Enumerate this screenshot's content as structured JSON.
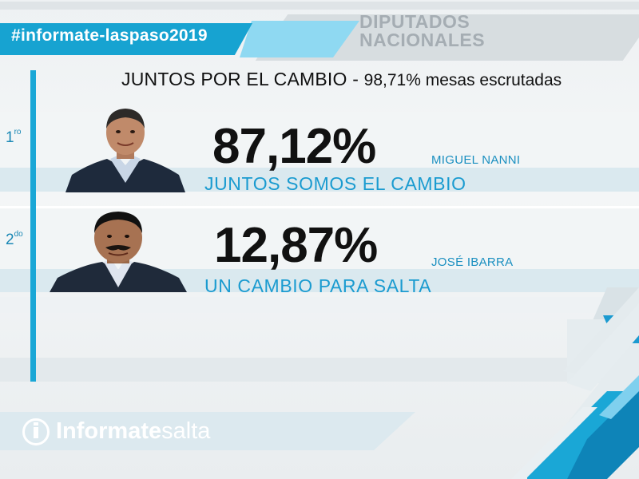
{
  "header": {
    "hashtag": "#informate-laspaso2019",
    "section_title_line1": "DIPUTADOS",
    "section_title_line2": "NACIONALES"
  },
  "headline": {
    "main": "JUNTOS POR EL CAMBIO - ",
    "sub": "98,71% mesas escrutadas"
  },
  "results": [
    {
      "rank_number": "1",
      "rank_suffix": "ro",
      "percentage": "87,12%",
      "percentage_value": 87.12,
      "candidate": "MIGUEL NANNI",
      "party": "JUNTOS SOMOS EL CAMBIO"
    },
    {
      "rank_number": "2",
      "rank_suffix": "do",
      "percentage": "12,87%",
      "percentage_value": 12.87,
      "candidate": "JOSÉ IBARRA",
      "party": "UN CAMBIO PARA SALTA"
    }
  ],
  "footer": {
    "logo_bold": "Informate",
    "logo_light": "salta"
  },
  "colors": {
    "accent": "#17a3d1",
    "text_dark": "#111111",
    "muted": "#a5adb3"
  }
}
